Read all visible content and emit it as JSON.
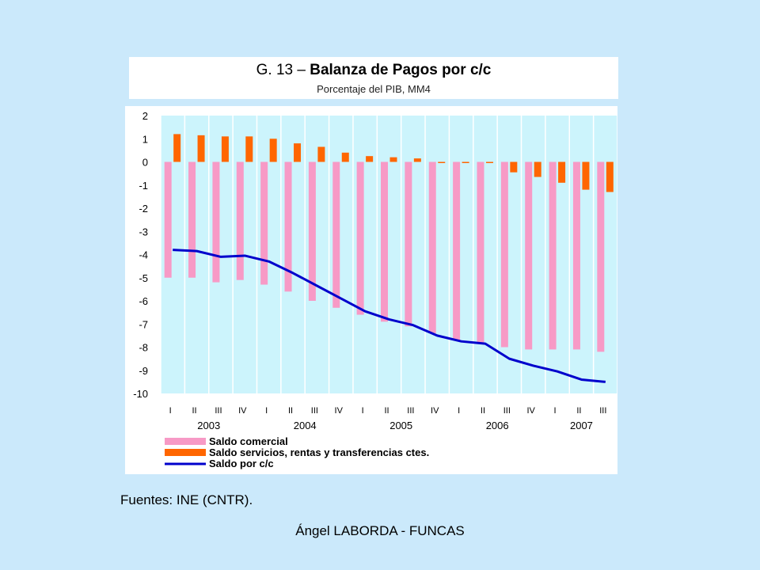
{
  "header": {
    "title_prefix": "G. 13 – ",
    "title_bold": "Balanza de Pagos por c/c",
    "subtitle": "Porcentaje del PIB, MM4"
  },
  "source": "Fuentes: INE (CNTR).",
  "footer": "Ángel LABORDA - FUNCAS",
  "colors": {
    "plot_bg": "#ccf4fc",
    "saldo_comercial": "#f79ac6",
    "saldo_servicios": "#ff6600",
    "saldo_cc": "#0000cc"
  },
  "chart_data": {
    "type": "bar",
    "categories": [
      "I",
      "II",
      "III",
      "IV",
      "I",
      "II",
      "III",
      "IV",
      "I",
      "II",
      "III",
      "IV",
      "I",
      "II",
      "III",
      "IV",
      "I",
      "II",
      "III"
    ],
    "years": [
      "2003",
      "2004",
      "2005",
      "2006",
      "2007"
    ],
    "ylim": [
      -10,
      2
    ],
    "yticks": [
      "2",
      "1",
      "0",
      "-1",
      "-2",
      "-3",
      "-4",
      "-5",
      "-6",
      "-7",
      "-8",
      "-9",
      "-10"
    ],
    "grid": true,
    "legend_position": "bottom",
    "series": [
      {
        "name": "Saldo comercial",
        "kind": "bar",
        "values": [
          -5.0,
          -5.0,
          -5.2,
          -5.1,
          -5.3,
          -5.6,
          -6.0,
          -6.3,
          -6.6,
          -6.9,
          -7.1,
          -7.4,
          -7.7,
          -7.8,
          -8.0,
          -8.1,
          -8.1,
          -8.1,
          -8.2
        ]
      },
      {
        "name": "Saldo servicios, rentas y transferencias ctes.",
        "kind": "bar",
        "values": [
          1.2,
          1.15,
          1.1,
          1.1,
          1.0,
          0.8,
          0.65,
          0.4,
          0.25,
          0.2,
          0.15,
          -0.05,
          -0.05,
          -0.05,
          -0.45,
          -0.65,
          -0.9,
          -1.2,
          -1.3
        ]
      },
      {
        "name": "Saldo por c/c",
        "kind": "line",
        "values": [
          -3.8,
          -3.85,
          -4.1,
          -4.05,
          -4.3,
          -4.8,
          -5.35,
          -5.9,
          -6.45,
          -6.8,
          -7.05,
          -7.5,
          -7.75,
          -7.85,
          -8.5,
          -8.8,
          -9.05,
          -9.4,
          -9.5
        ]
      }
    ]
  }
}
